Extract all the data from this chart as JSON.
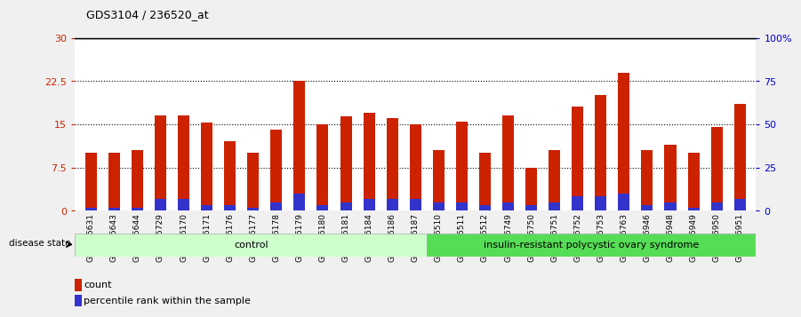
{
  "title": "GDS3104 / 236520_at",
  "samples": [
    "GSM155631",
    "GSM155643",
    "GSM155644",
    "GSM155729",
    "GSM156170",
    "GSM156171",
    "GSM156176",
    "GSM156177",
    "GSM156178",
    "GSM156179",
    "GSM156180",
    "GSM156181",
    "GSM156184",
    "GSM156186",
    "GSM156187",
    "GSM156510",
    "GSM156511",
    "GSM156512",
    "GSM156749",
    "GSM156750",
    "GSM156751",
    "GSM156752",
    "GSM156753",
    "GSM156763",
    "GSM156946",
    "GSM156948",
    "GSM156949",
    "GSM156950",
    "GSM156951"
  ],
  "red_values": [
    10.0,
    10.0,
    10.5,
    16.5,
    16.5,
    15.3,
    12.0,
    10.0,
    14.0,
    22.5,
    15.0,
    16.3,
    17.0,
    16.0,
    15.0,
    10.5,
    15.5,
    10.0,
    16.5,
    7.5,
    10.5,
    18.0,
    20.0,
    24.0,
    10.5,
    11.5,
    10.0,
    14.5,
    18.5
  ],
  "blue_values": [
    0.5,
    0.5,
    0.5,
    2.0,
    2.0,
    1.0,
    1.0,
    0.5,
    1.5,
    3.0,
    1.0,
    1.5,
    2.0,
    2.0,
    2.0,
    1.5,
    1.5,
    1.0,
    1.5,
    1.0,
    1.5,
    2.5,
    2.5,
    3.0,
    1.0,
    1.5,
    0.5,
    1.5,
    2.0
  ],
  "control_count": 15,
  "disease_group": "insulin-resistant polycystic ovary syndrome",
  "control_group": "control",
  "bar_color_red": "#CC2200",
  "bar_color_blue": "#3333CC",
  "ylim_left": [
    0,
    30
  ],
  "ylim_right": [
    0,
    100
  ],
  "yticks_left": [
    0,
    7.5,
    15,
    22.5,
    30
  ],
  "yticks_right": [
    0,
    25,
    50,
    75,
    100
  ],
  "ytick_labels_left": [
    "0",
    "7.5",
    "15",
    "22.5",
    "30"
  ],
  "ytick_labels_right": [
    "0",
    "25",
    "50",
    "75",
    "100%"
  ],
  "background_color": "#f0f0f0",
  "plot_bg_color": "#ffffff",
  "control_bg": "#ccffcc",
  "disease_bg": "#55dd55",
  "bar_width": 0.5,
  "legend_count": "count",
  "legend_pct": "percentile rank within the sample"
}
